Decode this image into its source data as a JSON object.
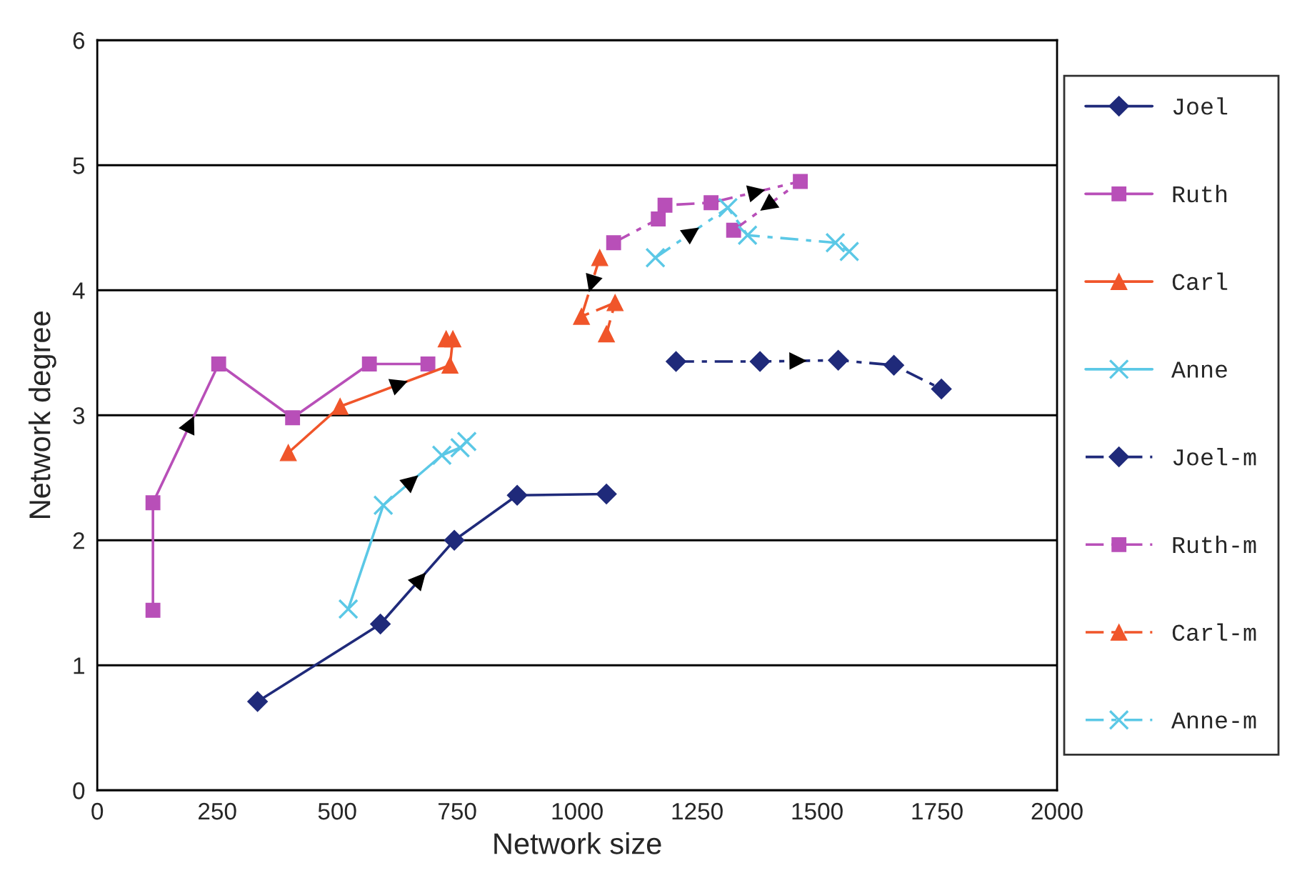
{
  "chart_data": {
    "type": "line",
    "xlabel": "Network size",
    "ylabel": "Network degree",
    "xlim": [
      0,
      2000
    ],
    "xticks": [
      0,
      250,
      500,
      750,
      1000,
      1250,
      1500,
      1750,
      2000
    ],
    "ylim": [
      0,
      6
    ],
    "yticks": [
      0,
      1,
      2,
      3,
      4,
      5,
      6
    ],
    "grid": "y",
    "legend": "right",
    "series": [
      {
        "name": "Joel",
        "color": "#1f2a7a",
        "marker": "diamond",
        "line_style": "solid",
        "x": [
          334,
          590,
          744,
          875,
          1061
        ],
        "values": [
          0.71,
          1.33,
          2.0,
          2.36,
          2.37
        ]
      },
      {
        "name": "Ruth",
        "color": "#b84fb8",
        "marker": "square",
        "line_style": "solid",
        "x": [
          116,
          116,
          253,
          407,
          567,
          689
        ],
        "values": [
          1.44,
          2.3,
          3.41,
          2.98,
          3.41,
          3.41
        ]
      },
      {
        "name": "Carl",
        "color": "#f0552a",
        "marker": "triangle",
        "line_style": "solid",
        "x": [
          398,
          506,
          735,
          741,
          727
        ],
        "values": [
          2.7,
          3.07,
          3.4,
          3.61,
          3.61
        ]
      },
      {
        "name": "Anne",
        "color": "#5bc8e6",
        "marker": "cross",
        "line_style": "solid",
        "x": [
          523,
          596,
          718,
          756,
          770
        ],
        "values": [
          1.45,
          2.28,
          2.68,
          2.74,
          2.79
        ]
      },
      {
        "name": "Joel-m",
        "color": "#1f2a7a",
        "marker": "diamond",
        "line_style": "dashed",
        "x": [
          1206,
          1381,
          1544,
          1660,
          1759
        ],
        "values": [
          3.43,
          3.43,
          3.44,
          3.4,
          3.21
        ]
      },
      {
        "name": "Ruth-m",
        "color": "#b84fb8",
        "marker": "square",
        "line_style": "dashed",
        "x": [
          1076,
          1169,
          1183,
          1279,
          1465,
          1326
        ],
        "values": [
          4.38,
          4.57,
          4.68,
          4.7,
          4.87,
          4.48
        ]
      },
      {
        "name": "Carl-m",
        "color": "#f0552a",
        "marker": "triangle",
        "line_style": "dashed",
        "x": [
          1047,
          1009,
          1079,
          1061
        ],
        "values": [
          4.26,
          3.79,
          3.9,
          3.65
        ]
      },
      {
        "name": "Anne-m",
        "color": "#5bc8e6",
        "marker": "cross",
        "line_style": "dashed",
        "x": [
          1163,
          1314,
          1355,
          1538,
          1567
        ],
        "values": [
          4.26,
          4.66,
          4.44,
          4.38,
          4.31
        ]
      }
    ]
  }
}
